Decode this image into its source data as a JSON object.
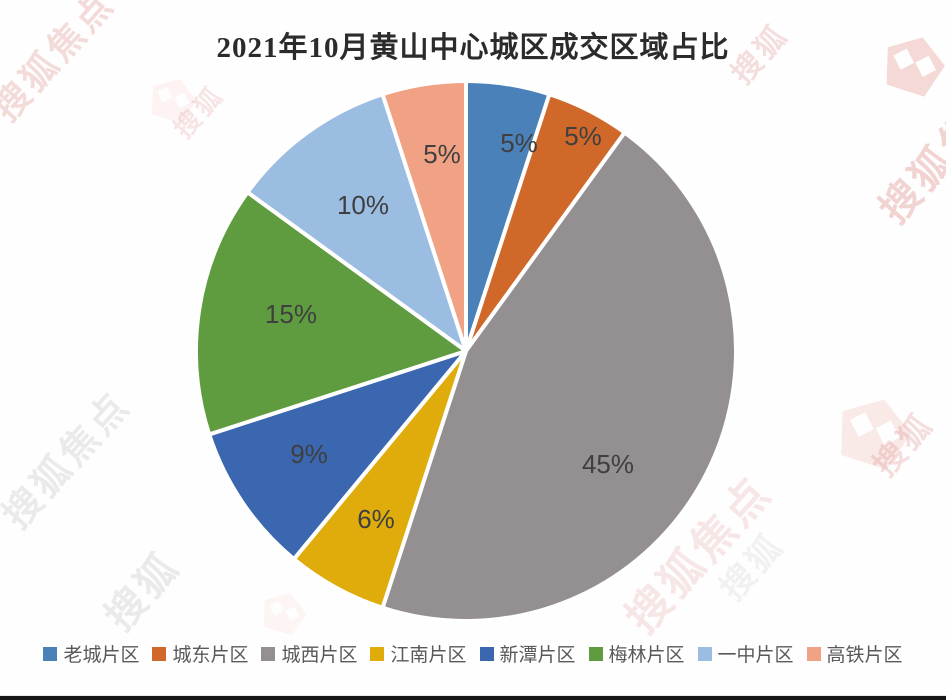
{
  "title": "2021年10月黄山中心城区成交区域占比",
  "watermark": {
    "text": "搜狐焦点",
    "short_text": "搜狐",
    "brand_red": "#c9534c",
    "brand_gray": "#8d8a90",
    "logo_pink": "#e8a39c"
  },
  "footer": {
    "border_color": "#161616"
  },
  "chart_data": {
    "type": "pie",
    "title": "2021年10月黄山中心城区成交区域占比",
    "direction": "clockwise",
    "start_angle_deg": -90,
    "legend_position": "bottom",
    "label_format": "{value}%",
    "series": [
      {
        "name": "老城片区",
        "value": 5,
        "color": "#4A81B9",
        "label": "5%"
      },
      {
        "name": "城东片区",
        "value": 5,
        "color": "#D0682A",
        "label": "5%"
      },
      {
        "name": "城西片区",
        "value": 45,
        "color": "#949092",
        "label": "45%"
      },
      {
        "name": "江南片区",
        "value": 6,
        "color": "#DFAC0C",
        "label": "6%"
      },
      {
        "name": "新潭片区",
        "value": 9,
        "color": "#3B66B0",
        "label": "9%"
      },
      {
        "name": "梅林片区",
        "value": 15,
        "color": "#5F9C3F",
        "label": "15%"
      },
      {
        "name": "一中片区",
        "value": 10,
        "color": "#9BBDE1",
        "label": "10%"
      },
      {
        "name": "高铁片区",
        "value": 5,
        "color": "#F2A284",
        "label": "5%"
      }
    ]
  }
}
